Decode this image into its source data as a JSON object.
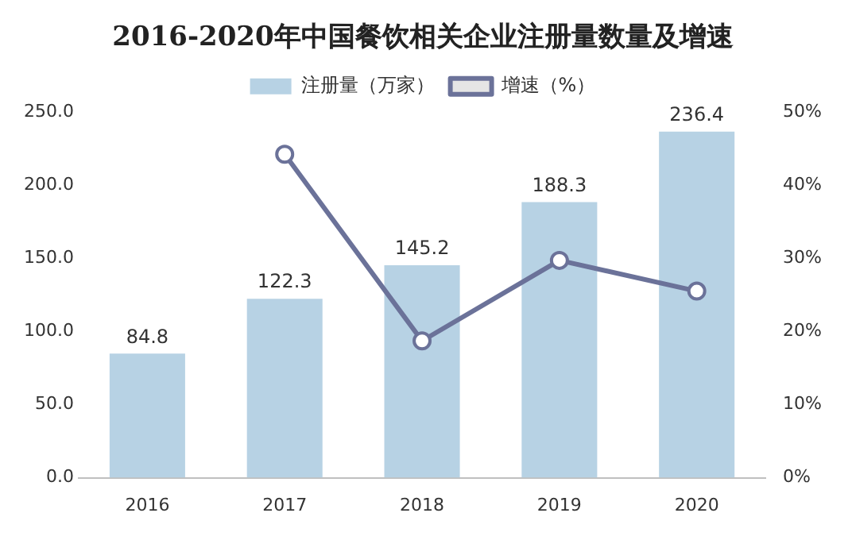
{
  "chart_data": {
    "type": "bar",
    "title": "2016-2020年中国餐饮相关企业注册量数量及增速",
    "categories": [
      "2016",
      "2017",
      "2018",
      "2019",
      "2020"
    ],
    "series": [
      {
        "name": "注册量（万家）",
        "color": "#b7d2e4",
        "values": [
          84.8,
          122.3,
          145.2,
          188.3,
          236.4
        ],
        "value_labels": [
          "84.8",
          "122.3",
          "145.2",
          "188.3",
          "236.4"
        ]
      },
      {
        "name": "增速（%）",
        "type": "line",
        "axis": "y2",
        "color": "#6b7299",
        "marker": "circle",
        "values": [
          null,
          44.2,
          18.7,
          29.7,
          25.5
        ]
      }
    ],
    "ylim": [
      0,
      250
    ],
    "yticks": [
      {
        "value": 0,
        "label": "0.0"
      },
      {
        "value": 50,
        "label": "50.0"
      },
      {
        "value": 100,
        "label": "100.0"
      },
      {
        "value": 150,
        "label": "150.0"
      },
      {
        "value": 200,
        "label": "200.0"
      },
      {
        "value": 250,
        "label": "250.0"
      }
    ],
    "y2lim": [
      0,
      50
    ],
    "y2ticks": [
      {
        "value": 0,
        "label": "0%"
      },
      {
        "value": 10,
        "label": "10%"
      },
      {
        "value": 20,
        "label": "20%"
      },
      {
        "value": 30,
        "label": "30%"
      },
      {
        "value": 40,
        "label": "40%"
      },
      {
        "value": 50,
        "label": "50%"
      }
    ],
    "grid": false,
    "legend": "top"
  }
}
